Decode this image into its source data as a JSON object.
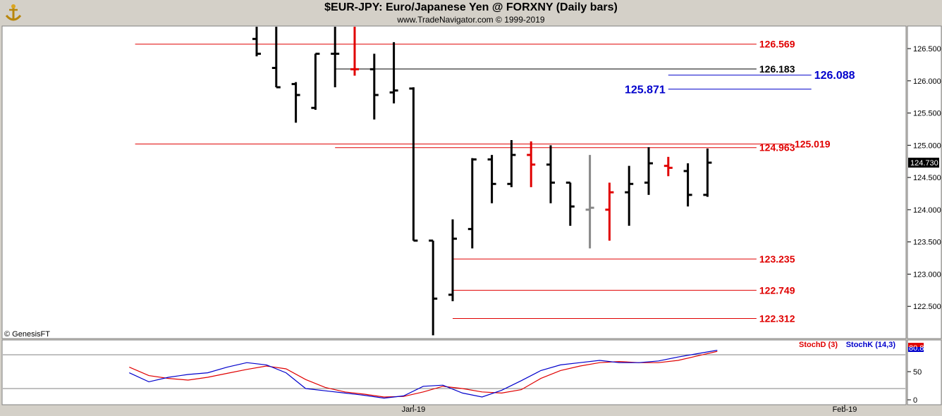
{
  "header": {
    "title": "$EUR-JPY:  Euro/Japanese Yen @ FORXNY  (Daily bars)",
    "subtitle": "www.TradeNavigator.com © 1999-2019"
  },
  "colors": {
    "up": "#000000",
    "down": "#e00000",
    "neutral": "#888888",
    "red_line": "#e00000",
    "blue_line": "#0000cc",
    "black_line": "#000000",
    "stochD": "#e00000",
    "stochK": "#0000cc",
    "panel_bg": "#ffffff",
    "frame_bg": "#d4d0c8"
  },
  "chart_data": [
    {
      "type": "ohlc",
      "title": "$EUR-JPY:  Euro/Japanese Yen @ FORXNY  (Daily bars)",
      "ylim": [
        122.0,
        126.85
      ],
      "y_ticks": [
        "126.500",
        "126.000",
        "125.500",
        "125.000",
        "124.500",
        "124.000",
        "123.500",
        "123.000",
        "122.500"
      ],
      "y_tick_values": [
        126.5,
        126.0,
        125.5,
        125.0,
        124.5,
        124.0,
        123.5,
        123.0,
        122.5
      ],
      "last_value_label": "124.730",
      "watermark": "© GenesisFT",
      "bars": [
        {
          "o": 126.65,
          "h": 126.85,
          "l": 126.38,
          "c": 126.42,
          "color": "up"
        },
        {
          "o": 126.2,
          "h": 126.85,
          "l": 125.9,
          "c": 125.9,
          "color": "up"
        },
        {
          "o": 125.95,
          "h": 125.98,
          "l": 125.35,
          "c": 125.78,
          "color": "up"
        },
        {
          "o": 125.58,
          "h": 126.42,
          "l": 125.55,
          "c": 126.42,
          "color": "up"
        },
        {
          "o": 126.42,
          "h": 126.85,
          "l": 125.9,
          "c": 126.42,
          "color": "up"
        },
        {
          "o": 126.18,
          "h": 126.85,
          "l": 126.08,
          "c": 126.18,
          "color": "down"
        },
        {
          "o": 126.18,
          "h": 126.42,
          "l": 125.4,
          "c": 125.78,
          "color": "up"
        },
        {
          "o": 125.82,
          "h": 126.6,
          "l": 125.65,
          "c": 125.85,
          "color": "up"
        },
        {
          "o": 125.88,
          "h": 125.9,
          "l": 123.52,
          "c": 123.52,
          "color": "up"
        },
        {
          "o": 123.52,
          "h": 123.52,
          "l": 122.05,
          "c": 122.62,
          "color": "up"
        },
        {
          "o": 122.68,
          "h": 123.85,
          "l": 122.58,
          "c": 123.55,
          "color": "up"
        },
        {
          "o": 123.7,
          "h": 124.8,
          "l": 123.4,
          "c": 124.78,
          "color": "up"
        },
        {
          "o": 124.78,
          "h": 124.85,
          "l": 124.1,
          "c": 124.4,
          "color": "up"
        },
        {
          "o": 124.4,
          "h": 125.08,
          "l": 124.35,
          "c": 124.85,
          "color": "up"
        },
        {
          "o": 124.85,
          "h": 125.06,
          "l": 124.35,
          "c": 124.7,
          "color": "down"
        },
        {
          "o": 124.7,
          "h": 125.0,
          "l": 124.1,
          "c": 124.42,
          "color": "up"
        },
        {
          "o": 124.42,
          "h": 124.42,
          "l": 123.75,
          "c": 124.05,
          "color": "up"
        },
        {
          "o": 124.0,
          "h": 124.85,
          "l": 123.4,
          "c": 124.03,
          "color": "neutral"
        },
        {
          "o": 124.0,
          "h": 124.42,
          "l": 123.52,
          "c": 124.27,
          "color": "down"
        },
        {
          "o": 124.27,
          "h": 124.68,
          "l": 123.75,
          "c": 124.4,
          "color": "up"
        },
        {
          "o": 124.42,
          "h": 124.97,
          "l": 124.23,
          "c": 124.72,
          "color": "up"
        },
        {
          "o": 124.68,
          "h": 124.82,
          "l": 124.52,
          "c": 124.65,
          "color": "down"
        },
        {
          "o": 124.6,
          "h": 124.72,
          "l": 124.05,
          "c": 124.23,
          "color": "up"
        },
        {
          "o": 124.23,
          "h": 124.95,
          "l": 124.2,
          "c": 124.73,
          "color": "up"
        }
      ],
      "levels": [
        {
          "value": 126.569,
          "label": "126.569",
          "color": "red_line",
          "from_bar": -6.2,
          "to_bar": 25.5,
          "label_side": "right"
        },
        {
          "value": 126.183,
          "label": "126.183",
          "color": "black_line",
          "from_bar": 4,
          "to_bar": 25.5,
          "label_side": "right"
        },
        {
          "value": 126.088,
          "label": "126.088",
          "color": "blue_line",
          "from_bar": 21,
          "to_bar": 28.3,
          "label_side": "right",
          "big": true
        },
        {
          "value": 125.871,
          "label": "125.871",
          "color": "blue_line",
          "from_bar": 21,
          "to_bar": 28.3,
          "label_side": "left",
          "big": true
        },
        {
          "value": 125.019,
          "label": "125.019",
          "color": "red_line",
          "from_bar": -6.2,
          "to_bar": 27.3,
          "label_side": "right"
        },
        {
          "value": 124.963,
          "label": "124.963",
          "color": "red_line",
          "from_bar": 4,
          "to_bar": 25.5,
          "label_side": "right"
        },
        {
          "value": 123.235,
          "label": "123.235",
          "color": "red_line",
          "from_bar": 10,
          "to_bar": 25.5,
          "label_side": "right"
        },
        {
          "value": 122.749,
          "label": "122.749",
          "color": "red_line",
          "from_bar": 10,
          "to_bar": 25.5,
          "label_side": "right"
        },
        {
          "value": 122.312,
          "label": "122.312",
          "color": "red_line",
          "from_bar": 10,
          "to_bar": 25.5,
          "label_side": "right"
        }
      ]
    },
    {
      "type": "line",
      "ylim": [
        0,
        100
      ],
      "y_ticks": [
        "50",
        "0"
      ],
      "y_tick_values": [
        50,
        0
      ],
      "hlines": [
        80,
        20
      ],
      "last_value_label": "80.83",
      "x_tick_labels": [
        {
          "label": "Jan-19",
          "bar": 8
        },
        {
          "label": "Feb-19",
          "bar": 30
        }
      ],
      "x": [
        -6.5,
        -5.5,
        -4.5,
        -3.5,
        -2.5,
        -1.5,
        -0.5,
        0.5,
        1.5,
        2.5,
        3.5,
        4.5,
        5.5,
        6.5,
        7.5,
        8.5,
        9.5,
        10.5,
        11.5,
        12.5,
        13.5,
        14.5,
        15.5,
        16.5,
        17.5,
        18.5,
        19.5,
        20.5,
        21.5,
        22.5,
        23.5
      ],
      "series": [
        {
          "name": "StochD (3)",
          "color": "stochD",
          "values": [
            58,
            43,
            38,
            35,
            40,
            47,
            54,
            60,
            55,
            36,
            22,
            14,
            10,
            5,
            6,
            14,
            24,
            20,
            14,
            12,
            18,
            38,
            52,
            60,
            66,
            68,
            66,
            66,
            70,
            78,
            86
          ]
        },
        {
          "name": "StochK (14,3)",
          "color": "stochK",
          "values": [
            48,
            32,
            40,
            45,
            48,
            58,
            66,
            62,
            48,
            20,
            16,
            12,
            8,
            3,
            7,
            24,
            26,
            12,
            5,
            17,
            34,
            52,
            62,
            66,
            70,
            66,
            66,
            69,
            76,
            82,
            88
          ]
        }
      ]
    }
  ]
}
